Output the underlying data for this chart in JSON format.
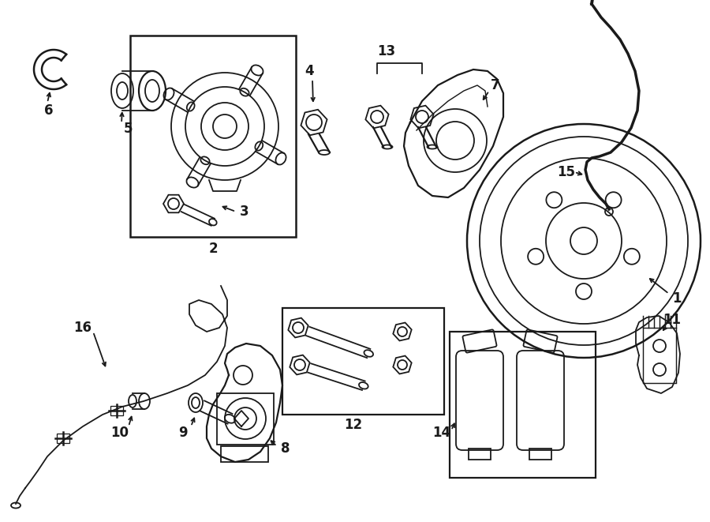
{
  "bg": "#ffffff",
  "lc": "#1a1a1a",
  "lw": 1.3,
  "fig_w": 9.0,
  "fig_h": 6.61,
  "dpi": 100
}
